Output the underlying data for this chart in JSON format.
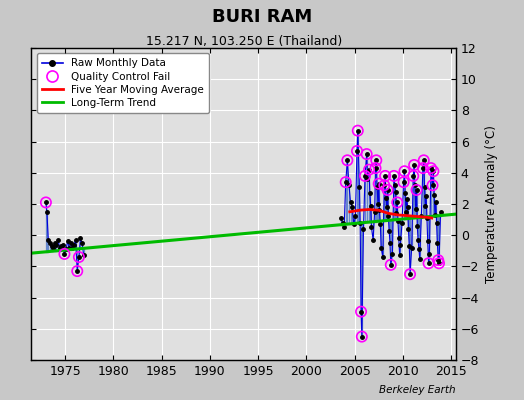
{
  "title": "BURI RAM",
  "subtitle": "15.217 N, 103.250 E (Thailand)",
  "ylabel": "Temperature Anomaly (°C)",
  "attribution": "Berkeley Earth",
  "xlim": [
    1971.5,
    2015.5
  ],
  "ylim": [
    -8,
    12
  ],
  "yticks": [
    -8,
    -6,
    -4,
    -2,
    0,
    2,
    4,
    6,
    8,
    10,
    12
  ],
  "xticks": [
    1975,
    1980,
    1985,
    1990,
    1995,
    2000,
    2005,
    2010,
    2015
  ],
  "bg_color": "#e0e0e0",
  "grid_color": "#ffffff",
  "raw_line_color": "#6688cc",
  "raw_dot_color": "#000000",
  "qc_color": "#ff00ff",
  "mavg_color": "#ff0000",
  "trend_color": "#00bb00",
  "fig_bg_color": "#c8c8c8",
  "raw_data_early": [
    [
      1973.0,
      2.1
    ],
    [
      1973.1,
      1.5
    ],
    [
      1973.25,
      -0.3
    ],
    [
      1973.42,
      -0.5
    ],
    [
      1973.58,
      -0.7
    ],
    [
      1973.75,
      -0.8
    ],
    [
      1973.92,
      -0.5
    ],
    [
      1974.08,
      -0.6
    ],
    [
      1974.25,
      -0.3
    ],
    [
      1974.42,
      -0.8
    ],
    [
      1974.58,
      -0.7
    ],
    [
      1974.75,
      -0.6
    ],
    [
      1974.92,
      -1.2
    ],
    [
      1975.08,
      -0.9
    ],
    [
      1975.25,
      -0.4
    ],
    [
      1975.42,
      -0.8
    ],
    [
      1975.58,
      -0.5
    ],
    [
      1975.75,
      -0.8
    ],
    [
      1975.92,
      -0.6
    ],
    [
      1976.08,
      -0.3
    ],
    [
      1976.25,
      -2.3
    ],
    [
      1976.42,
      -1.4
    ],
    [
      1976.58,
      -0.2
    ],
    [
      1976.75,
      -0.5
    ],
    [
      1976.92,
      -1.3
    ]
  ],
  "qc_fail_early": [
    [
      1973.0,
      2.1
    ],
    [
      1974.92,
      -1.2
    ],
    [
      1976.25,
      -2.3
    ],
    [
      1976.42,
      -1.4
    ]
  ],
  "raw_data_late": [
    [
      2003.58,
      1.1
    ],
    [
      2003.75,
      0.8
    ],
    [
      2003.92,
      0.5
    ],
    [
      2004.08,
      3.4
    ],
    [
      2004.25,
      4.8
    ],
    [
      2004.42,
      3.2
    ],
    [
      2004.58,
      2.1
    ],
    [
      2004.75,
      1.8
    ],
    [
      2004.92,
      0.7
    ],
    [
      2005.08,
      1.2
    ],
    [
      2005.25,
      5.4
    ],
    [
      2005.33,
      6.7
    ],
    [
      2005.5,
      3.1
    ],
    [
      2005.58,
      0.8
    ],
    [
      2005.67,
      -4.9
    ],
    [
      2005.75,
      -6.5
    ],
    [
      2005.92,
      0.4
    ],
    [
      2006.08,
      3.8
    ],
    [
      2006.25,
      5.2
    ],
    [
      2006.33,
      3.6
    ],
    [
      2006.5,
      4.2
    ],
    [
      2006.58,
      2.7
    ],
    [
      2006.67,
      1.9
    ],
    [
      2006.75,
      0.5
    ],
    [
      2006.92,
      -0.3
    ],
    [
      2007.08,
      1.5
    ],
    [
      2007.17,
      4.3
    ],
    [
      2007.25,
      4.8
    ],
    [
      2007.33,
      3.1
    ],
    [
      2007.42,
      2.0
    ],
    [
      2007.5,
      3.3
    ],
    [
      2007.58,
      1.6
    ],
    [
      2007.67,
      0.7
    ],
    [
      2007.75,
      -0.8
    ],
    [
      2007.92,
      -1.4
    ],
    [
      2008.08,
      3.2
    ],
    [
      2008.17,
      3.8
    ],
    [
      2008.25,
      2.4
    ],
    [
      2008.33,
      1.8
    ],
    [
      2008.42,
      2.9
    ],
    [
      2008.5,
      1.2
    ],
    [
      2008.58,
      0.3
    ],
    [
      2008.67,
      -0.5
    ],
    [
      2008.75,
      -1.9
    ],
    [
      2008.92,
      -1.2
    ],
    [
      2009.08,
      3.8
    ],
    [
      2009.17,
      3.2
    ],
    [
      2009.25,
      2.8
    ],
    [
      2009.33,
      1.4
    ],
    [
      2009.42,
      2.1
    ],
    [
      2009.5,
      0.9
    ],
    [
      2009.58,
      -0.2
    ],
    [
      2009.67,
      -1.3
    ],
    [
      2009.75,
      -0.6
    ],
    [
      2009.92,
      0.8
    ],
    [
      2010.08,
      3.4
    ],
    [
      2010.17,
      4.1
    ],
    [
      2010.25,
      2.7
    ],
    [
      2010.33,
      1.5
    ],
    [
      2010.42,
      2.3
    ],
    [
      2010.5,
      1.8
    ],
    [
      2010.58,
      0.4
    ],
    [
      2010.67,
      -0.7
    ],
    [
      2010.75,
      -2.5
    ],
    [
      2010.92,
      -0.8
    ],
    [
      2011.08,
      3.8
    ],
    [
      2011.17,
      4.5
    ],
    [
      2011.25,
      3.2
    ],
    [
      2011.33,
      1.7
    ],
    [
      2011.42,
      2.9
    ],
    [
      2011.5,
      0.6
    ],
    [
      2011.58,
      -0.3
    ],
    [
      2011.67,
      -0.9
    ],
    [
      2011.75,
      -1.5
    ],
    [
      2011.92,
      1.2
    ],
    [
      2012.08,
      4.3
    ],
    [
      2012.17,
      4.8
    ],
    [
      2012.25,
      3.1
    ],
    [
      2012.33,
      1.9
    ],
    [
      2012.42,
      2.5
    ],
    [
      2012.5,
      1.1
    ],
    [
      2012.58,
      -0.4
    ],
    [
      2012.67,
      -1.8
    ],
    [
      2012.75,
      -1.2
    ],
    [
      2012.92,
      4.3
    ],
    [
      2013.08,
      3.2
    ],
    [
      2013.17,
      4.1
    ],
    [
      2013.25,
      2.6
    ],
    [
      2013.33,
      1.3
    ],
    [
      2013.42,
      2.1
    ],
    [
      2013.5,
      0.8
    ],
    [
      2013.58,
      -0.5
    ],
    [
      2013.67,
      -1.6
    ],
    [
      2013.75,
      -1.8
    ],
    [
      2013.92,
      1.5
    ]
  ],
  "qc_fail_late": [
    [
      2004.08,
      3.4
    ],
    [
      2004.25,
      4.8
    ],
    [
      2005.25,
      5.4
    ],
    [
      2005.33,
      6.7
    ],
    [
      2005.67,
      -4.9
    ],
    [
      2005.75,
      -6.5
    ],
    [
      2006.08,
      3.8
    ],
    [
      2006.25,
      5.2
    ],
    [
      2006.5,
      4.2
    ],
    [
      2007.17,
      4.3
    ],
    [
      2007.25,
      4.8
    ],
    [
      2007.5,
      3.3
    ],
    [
      2008.08,
      3.2
    ],
    [
      2008.17,
      3.8
    ],
    [
      2008.42,
      2.9
    ],
    [
      2008.75,
      -1.9
    ],
    [
      2009.08,
      3.8
    ],
    [
      2009.42,
      2.1
    ],
    [
      2010.08,
      3.4
    ],
    [
      2010.17,
      4.1
    ],
    [
      2010.75,
      -2.5
    ],
    [
      2011.08,
      3.8
    ],
    [
      2011.17,
      4.5
    ],
    [
      2011.42,
      2.9
    ],
    [
      2012.08,
      4.3
    ],
    [
      2012.17,
      4.8
    ],
    [
      2012.67,
      -1.8
    ],
    [
      2012.92,
      4.3
    ],
    [
      2013.08,
      3.2
    ],
    [
      2013.17,
      4.1
    ],
    [
      2013.67,
      -1.6
    ],
    [
      2013.75,
      -1.8
    ]
  ],
  "mavg_x": [
    2004.5,
    2005.5,
    2006.5,
    2007.5,
    2008.5,
    2009.5,
    2010.5,
    2011.5,
    2012.5,
    2013.0
  ],
  "mavg_y": [
    1.5,
    1.6,
    1.65,
    1.6,
    1.4,
    1.3,
    1.25,
    1.2,
    1.15,
    1.1
  ],
  "trend_x": [
    1971.5,
    2015.5
  ],
  "trend_y": [
    -1.15,
    1.35
  ]
}
